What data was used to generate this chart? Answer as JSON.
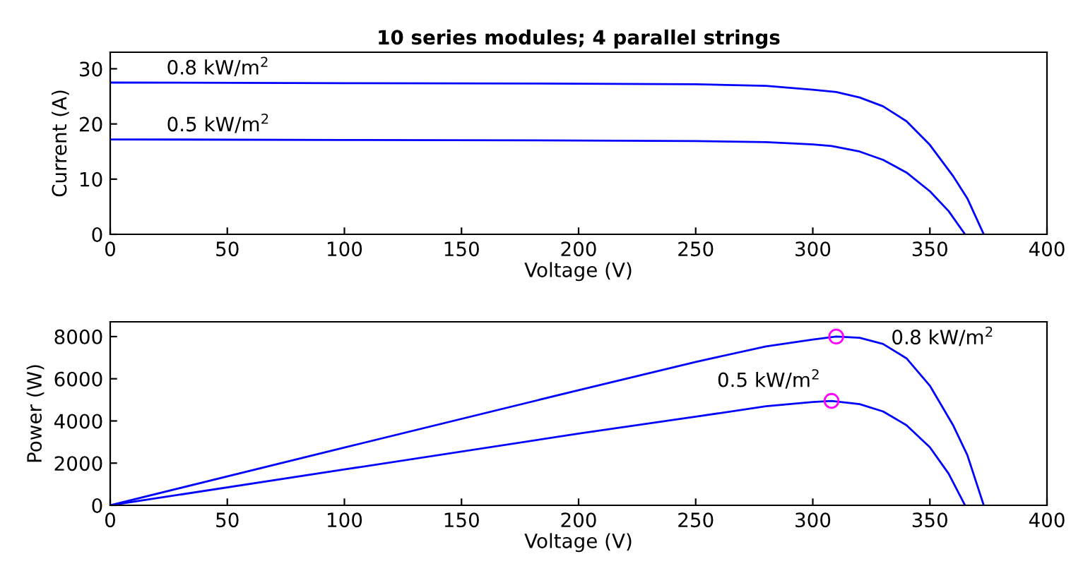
{
  "chart_data": [
    {
      "type": "line",
      "title": "10 series modules; 4 parallel strings",
      "xlabel": "Voltage (V)",
      "ylabel": "Current (A)",
      "xlim": [
        0,
        400
      ],
      "xticks": [
        0,
        50,
        100,
        150,
        200,
        250,
        300,
        350,
        400
      ],
      "ylim": [
        0,
        33
      ],
      "yticks": [
        0,
        10,
        20,
        30
      ],
      "grid": false,
      "legend": false,
      "series": [
        {
          "color": "#0000ff",
          "x": [
            0,
            100,
            200,
            250,
            280,
            300,
            310,
            320,
            330,
            340,
            350,
            360,
            366,
            373
          ],
          "values": [
            27.5,
            27.4,
            27.3,
            27.2,
            26.9,
            26.2,
            25.8,
            24.8,
            23.2,
            20.5,
            16.2,
            10.5,
            6.5,
            0
          ]
        },
        {
          "color": "#0000ff",
          "x": [
            0,
            100,
            200,
            250,
            280,
            300,
            308,
            320,
            330,
            340,
            350,
            358,
            365
          ],
          "values": [
            17.2,
            17.1,
            17.0,
            16.9,
            16.7,
            16.3,
            16.0,
            15.0,
            13.5,
            11.2,
            7.8,
            4.2,
            0
          ]
        }
      ],
      "annotations": [
        "0.8 kW/m$^{2}$",
        "0.5 kW/m$^{2}$"
      ]
    },
    {
      "type": "line",
      "xlabel": "Voltage (V)",
      "ylabel": "Power (W)",
      "xlim": [
        0,
        400
      ],
      "xticks": [
        0,
        50,
        100,
        150,
        200,
        250,
        300,
        350,
        400
      ],
      "ylim": [
        0,
        8700
      ],
      "yticks": [
        0,
        2000,
        4000,
        6000,
        8000
      ],
      "grid": false,
      "legend": false,
      "series": [
        {
          "color": "#0000ff",
          "x": [
            0,
            100,
            200,
            250,
            280,
            300,
            310,
            320,
            330,
            340,
            350,
            360,
            366,
            373
          ],
          "values": [
            0,
            2740,
            5460,
            6800,
            7530,
            7860,
            8000,
            7940,
            7650,
            6970,
            5670,
            3780,
            2380,
            0
          ]
        },
        {
          "color": "#0000ff",
          "x": [
            0,
            100,
            200,
            250,
            280,
            300,
            308,
            320,
            330,
            340,
            350,
            358,
            365
          ],
          "values": [
            0,
            1700,
            3400,
            4200,
            4700,
            4900,
            4950,
            4800,
            4450,
            3800,
            2750,
            1500,
            0
          ]
        },
        {
          "type": "scatter",
          "marker": "circle",
          "color": "#ff00ff",
          "x": [
            310,
            308
          ],
          "values": [
            8000,
            4950
          ]
        }
      ],
      "annotations": [
        {
          "text": "0.8 kW/m$^{2}$",
          "x": 315,
          "y": 8000
        },
        {
          "text": "0.5 kW/m$^{2}$",
          "x": 315,
          "y": 4950
        }
      ]
    }
  ]
}
